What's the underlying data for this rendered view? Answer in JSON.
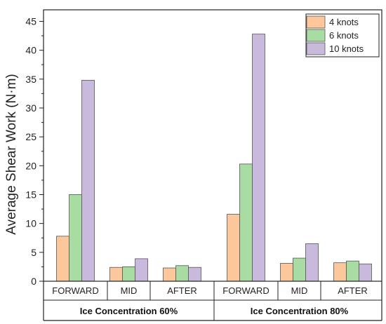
{
  "chart_data": {
    "type": "bar",
    "title": "",
    "ylabel": "Average Shear Work (N·m)",
    "ylim": [
      0,
      47
    ],
    "yticks": [
      0,
      5,
      10,
      15,
      20,
      25,
      30,
      35,
      40,
      45
    ],
    "groups": [
      {
        "label": "Ice Concentration 60%",
        "categories": [
          "FORWARD",
          "MID",
          "AFTER"
        ]
      },
      {
        "label": "Ice Concentration 80%",
        "categories": [
          "FORWARD",
          "MID",
          "AFTER"
        ]
      }
    ],
    "categories": [
      "FORWARD",
      "MID",
      "AFTER",
      "FORWARD",
      "MID",
      "AFTER"
    ],
    "series": [
      {
        "name": "4 knots",
        "color": "#fcc89b",
        "values": [
          7.8,
          2.4,
          2.3,
          11.6,
          3.1,
          3.2
        ]
      },
      {
        "name": "6 knots",
        "color": "#a9dca2",
        "values": [
          15.0,
          2.5,
          2.7,
          20.3,
          4.0,
          3.5
        ]
      },
      {
        "name": "10 knots",
        "color": "#c9b9dd",
        "values": [
          34.8,
          3.9,
          2.4,
          42.8,
          6.5,
          3.0
        ]
      }
    ],
    "legend": "top-right",
    "grid": false
  }
}
